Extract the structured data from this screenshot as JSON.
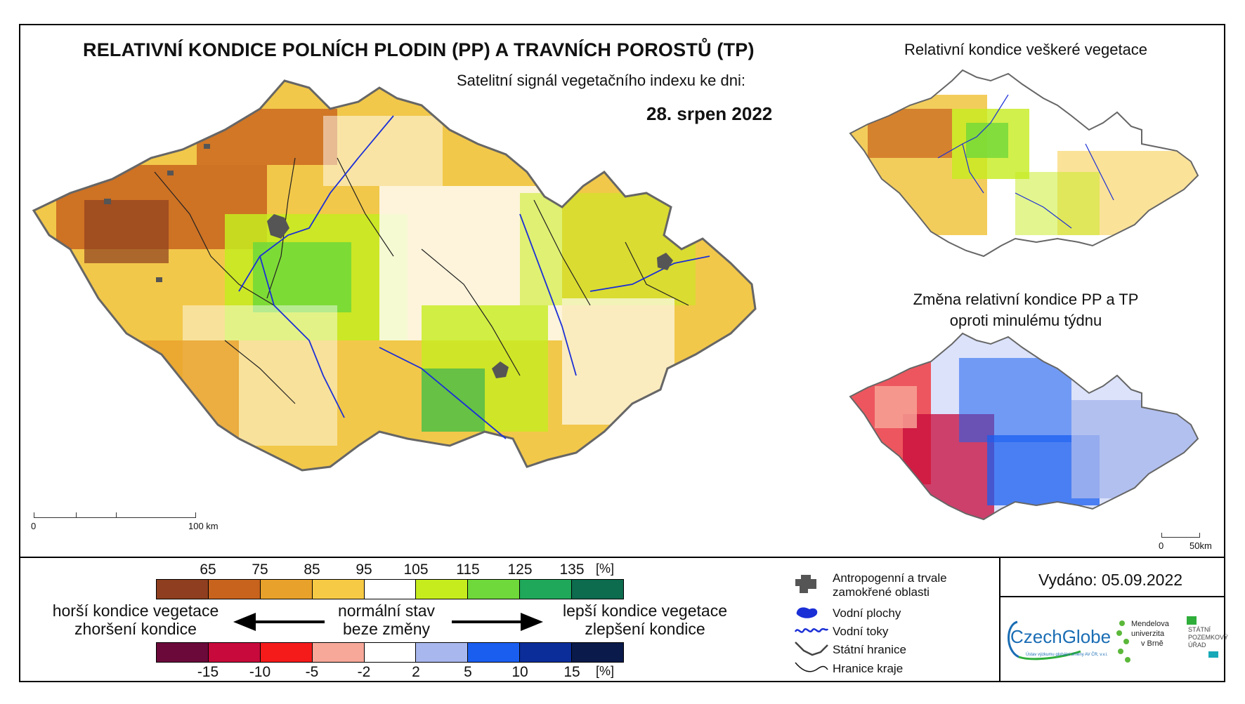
{
  "header": {
    "title": "RELATIVNÍ KONDICE POLNÍCH PLODIN (PP) A TRAVNÍCH POROSTŮ (TP)",
    "subtitle": "Satelitní signál vegetačního indexu ke dni:",
    "date": "28. srpen 2022"
  },
  "insets": {
    "vegetation_title": "Relativní kondice veškeré vegetace",
    "change_title_line1": "Změna relativní kondice PP a TP",
    "change_title_line2": "oproti minulému týdnu"
  },
  "scalebars": {
    "main_start": "0",
    "main_end": "100 km",
    "inset_start": "0",
    "inset_end": "50km"
  },
  "condition_scale": {
    "labels": [
      "65",
      "75",
      "85",
      "95",
      "105",
      "115",
      "125",
      "135",
      "[%]"
    ],
    "colors": [
      "#8f3f1f",
      "#c8631d",
      "#e8a12a",
      "#f7ca45",
      "#ffffff",
      "#c6ec1e",
      "#6fd83a",
      "#20a85a",
      "#0d6b4e"
    ]
  },
  "change_scale": {
    "labels": [
      "-15",
      "-10",
      "-5",
      "-2",
      "2",
      "5",
      "10",
      "15",
      "[%]"
    ],
    "colors": [
      "#6b0a3a",
      "#c70a3b",
      "#f51b1b",
      "#f7a899",
      "#ffffff",
      "#a8b8ee",
      "#1a5ef0",
      "#0b2d9a",
      "#0a1a4a"
    ]
  },
  "legend_text": {
    "worse_1": "horší kondice vegetace",
    "worse_2": "zhoršení kondice",
    "normal_1": "normální stav",
    "normal_2": "beze změny",
    "better_1": "lepší kondice vegetace",
    "better_2": "zlepšení kondice"
  },
  "map_legend": {
    "urban_1": "Antropogenní a trvale",
    "urban_2": "zamokřené oblasti",
    "water_bodies": "Vodní plochy",
    "rivers": "Vodní toky",
    "state_border": "Státní hranice",
    "region_border": "Hranice kraje"
  },
  "issued": "Vydáno: 05.09.2022",
  "logos": {
    "czechglobe": "CzechGlobe",
    "czechglobe_sub": "Ústav výzkumu globální změny AV ČR, v.v.i.",
    "mendel_1": "Mendelova",
    "mendel_2": "univerzita",
    "mendel_3": "v Brně",
    "spu_1": "STÁTNÍ",
    "spu_2": "POZEMKOVÝ",
    "spu_3": "ÚŘAD"
  },
  "colors": {
    "accent_blue": "#1a6db4",
    "river_blue": "#1b2fd6",
    "urban_gray": "#555555"
  }
}
